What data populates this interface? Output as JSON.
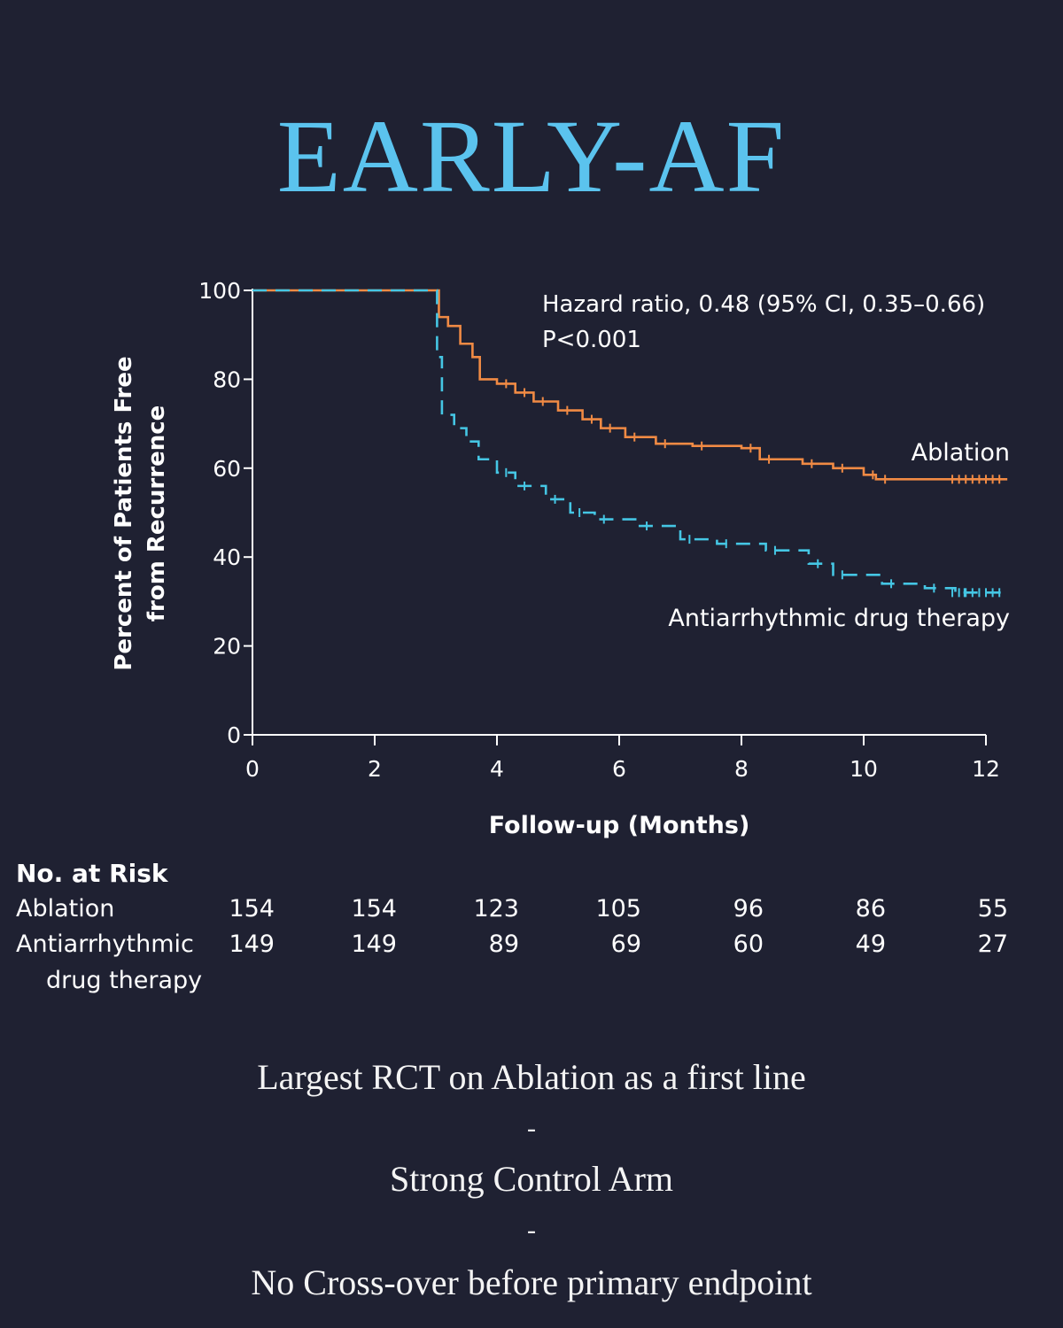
{
  "title": "EARLY-AF",
  "chart_data": {
    "type": "line",
    "subtype": "kaplan-meier",
    "ylabel_line1": "Percent of Patients Free",
    "ylabel_line2": "from Recurrence",
    "xlabel": "Follow-up (Months)",
    "xlim": [
      0,
      12
    ],
    "ylim": [
      0,
      100
    ],
    "x_ticks": [
      "0",
      "2",
      "4",
      "6",
      "8",
      "10",
      "12"
    ],
    "y_ticks": [
      "0",
      "20",
      "40",
      "60",
      "80",
      "100"
    ],
    "annotation_line1": "Hazard ratio, 0.48 (95% CI, 0.35–0.66)",
    "annotation_line2": "P<0.001",
    "series": [
      {
        "name": "Ablation",
        "color": "#f08a44",
        "dash": "solid",
        "points": [
          [
            0,
            100
          ],
          [
            3.0,
            100
          ],
          [
            3.05,
            94
          ],
          [
            3.2,
            92
          ],
          [
            3.4,
            88
          ],
          [
            3.6,
            85
          ],
          [
            3.72,
            80
          ],
          [
            4.0,
            79
          ],
          [
            4.3,
            77
          ],
          [
            4.6,
            75
          ],
          [
            5.0,
            73
          ],
          [
            5.4,
            71
          ],
          [
            5.7,
            69
          ],
          [
            6.1,
            67
          ],
          [
            6.6,
            65.5
          ],
          [
            7.2,
            65
          ],
          [
            8.0,
            64.5
          ],
          [
            8.3,
            62
          ],
          [
            9.0,
            61
          ],
          [
            9.5,
            60
          ],
          [
            10.0,
            58.5
          ],
          [
            10.2,
            57.5
          ],
          [
            12.35,
            57.5
          ]
        ]
      },
      {
        "name": "Antiarrhythmic drug therapy",
        "color": "#45c6e4",
        "dash": "dashed",
        "points": [
          [
            0,
            100
          ],
          [
            3.0,
            100
          ],
          [
            3.02,
            85
          ],
          [
            3.1,
            72
          ],
          [
            3.3,
            69
          ],
          [
            3.5,
            66
          ],
          [
            3.7,
            62
          ],
          [
            4.0,
            59
          ],
          [
            4.3,
            56
          ],
          [
            4.8,
            53
          ],
          [
            5.2,
            50
          ],
          [
            5.6,
            48.5
          ],
          [
            6.3,
            47
          ],
          [
            7.0,
            44
          ],
          [
            7.6,
            43
          ],
          [
            8.4,
            41.5
          ],
          [
            9.1,
            38.5
          ],
          [
            9.5,
            36
          ],
          [
            10.3,
            34
          ],
          [
            11.0,
            33
          ],
          [
            11.5,
            32
          ],
          [
            12.35,
            32
          ]
        ]
      }
    ],
    "number_at_risk": {
      "title": "No. at Risk",
      "rows": [
        {
          "label_line1": "Ablation",
          "label_line2": "",
          "values": [
            "154",
            "154",
            "123",
            "105",
            "96",
            "86",
            "55"
          ]
        },
        {
          "label_line1": "Antiarrhythmic",
          "label_line2": "drug therapy",
          "values": [
            "149",
            "149",
            "89",
            "69",
            "60",
            "49",
            "27"
          ]
        }
      ]
    }
  },
  "captions": {
    "line1": "Largest RCT on Ablation as a first line",
    "sep1": "-",
    "line2": "Strong Control Arm",
    "sep2": "-",
    "line3": "No Cross-over before primary endpoint"
  }
}
